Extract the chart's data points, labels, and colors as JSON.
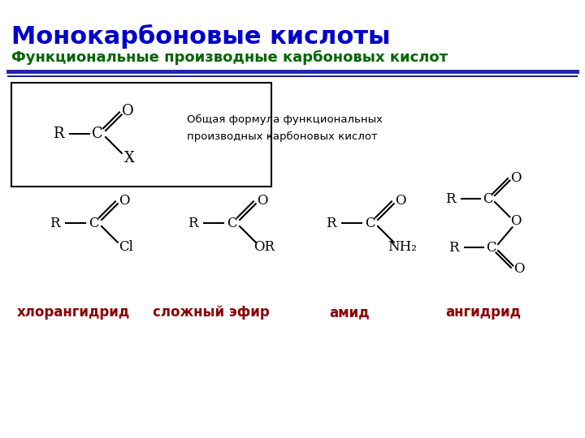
{
  "title": "Монокарбоновые кислоты",
  "subtitle": "Функциональные производные карбоновых кислот",
  "title_color": "#0000CC",
  "subtitle_color": "#006600",
  "title_fontsize": 22,
  "subtitle_fontsize": 13,
  "label_color": "#8B0000",
  "label_fontsize": 12,
  "formula_text": "Общая формула функциональных\nпроизводных карбоновых кислот",
  "labels": [
    "хлорангидрид",
    "сложный эфир",
    "амид",
    "ангидрид"
  ],
  "bg_color": "#FFFFFF"
}
